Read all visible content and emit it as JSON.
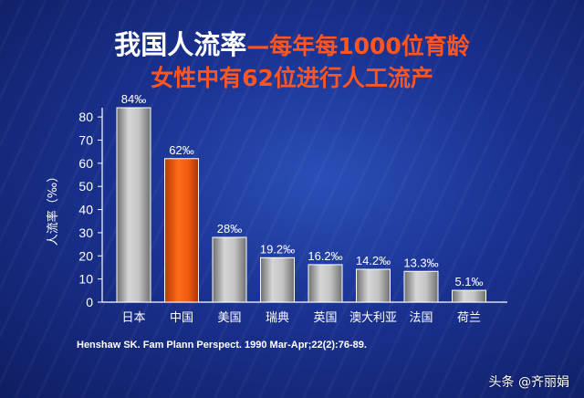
{
  "title": {
    "line1_main": "我国人流率",
    "line1_sub": "—每年每1000位育龄",
    "line2": "女性中有62位进行人工流产"
  },
  "source": "Henshaw SK. Fam Plann Perspect. 1990 Mar-Apr;22(2):76-89.",
  "watermark": "头条 @齐丽娟",
  "colors": {
    "bar_default": "#a8a8a8",
    "bar_highlight": "#e85a10",
    "title_white": "#ffffff",
    "title_orange": "#ff5520"
  },
  "chart_data": {
    "type": "bar",
    "categories": [
      "日本",
      "中国",
      "美国",
      "瑞典",
      "英国",
      "澳大利亚",
      "法国",
      "荷兰"
    ],
    "values": [
      84,
      62,
      28,
      19.2,
      16.2,
      14.2,
      13.3,
      5.1
    ],
    "value_labels": [
      "84‰",
      "62‰",
      "28‰",
      "19.2‰",
      "16.2‰",
      "14.2‰",
      "13.3‰",
      "5.1‰"
    ],
    "highlight_index": 1,
    "ylabel": "人流率（‰）",
    "ylim": [
      0,
      84
    ],
    "yticks": [
      "0",
      "10",
      "20",
      "30",
      "40",
      "50",
      "60",
      "70",
      "80"
    ],
    "grid": false,
    "legend": "none"
  }
}
